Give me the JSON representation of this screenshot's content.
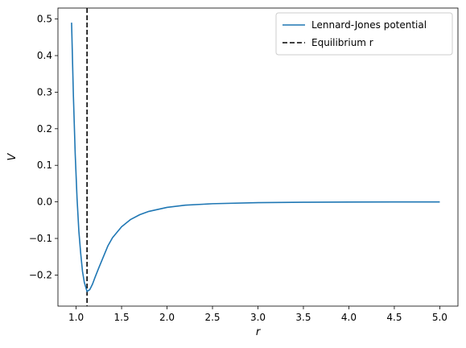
{
  "chart_data": {
    "type": "line",
    "xlabel": "r",
    "ylabel": "V",
    "xlim": [
      0.8,
      5.2
    ],
    "ylim": [
      -0.285,
      0.53
    ],
    "x_ticks": [
      1.0,
      1.5,
      2.0,
      2.5,
      3.0,
      3.5,
      4.0,
      4.5,
      5.0
    ],
    "x_tick_labels": [
      "1.0",
      "1.5",
      "2.0",
      "2.5",
      "3.0",
      "3.5",
      "4.0",
      "4.5",
      "5.0"
    ],
    "y_ticks": [
      -0.2,
      -0.1,
      0.0,
      0.1,
      0.2,
      0.3,
      0.4,
      0.5
    ],
    "y_tick_labels": [
      "−0.2",
      "−0.1",
      "0.0",
      "0.1",
      "0.2",
      "0.3",
      "0.4",
      "0.5"
    ],
    "grid": false,
    "legend_position": "top-right",
    "series": [
      {
        "name": "Lennard-Jones potential",
        "style": "solid",
        "color": "#1f77b4",
        "x": [
          0.95,
          0.97,
          0.99,
          1.01,
          1.03,
          1.05,
          1.07,
          1.09,
          1.12,
          1.15,
          1.18,
          1.21,
          1.25,
          1.3,
          1.35,
          1.4,
          1.5,
          1.6,
          1.7,
          1.8,
          2.0,
          2.2,
          2.5,
          3.0,
          3.5,
          4.0,
          4.5,
          5.0
        ],
        "y": [
          0.49,
          0.29,
          0.13,
          0.01,
          -0.08,
          -0.14,
          -0.19,
          -0.22,
          -0.245,
          -0.24,
          -0.225,
          -0.205,
          -0.18,
          -0.15,
          -0.12,
          -0.098,
          -0.068,
          -0.048,
          -0.035,
          -0.026,
          -0.015,
          -0.009,
          -0.005,
          -0.002,
          -0.001,
          -0.0005,
          -0.0002,
          -0.0001
        ]
      },
      {
        "name": "Equilibrium r",
        "style": "dashed",
        "color": "#000000",
        "x_value": 1.12
      }
    ]
  }
}
